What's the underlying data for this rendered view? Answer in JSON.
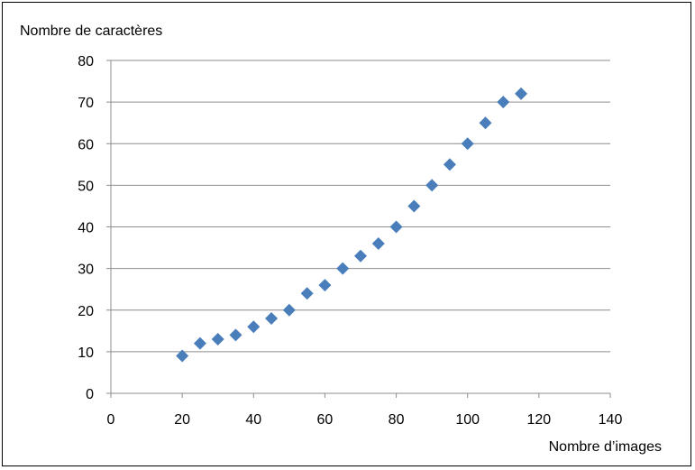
{
  "chart_data": {
    "type": "scatter",
    "title": "",
    "xlabel": "Nombre d’images",
    "ylabel": "Nombre de caractères",
    "xlim": [
      0,
      140
    ],
    "ylim": [
      0,
      80
    ],
    "x_ticks": [
      0,
      20,
      40,
      60,
      80,
      100,
      120,
      140
    ],
    "y_ticks": [
      0,
      10,
      20,
      30,
      40,
      50,
      60,
      70,
      80
    ],
    "grid": "horizontal",
    "legend": "none",
    "marker": "diamond",
    "color": "#4a7ebb",
    "series": [
      {
        "points": [
          [
            20,
            9
          ],
          [
            25,
            12
          ],
          [
            30,
            13
          ],
          [
            35,
            14
          ],
          [
            40,
            16
          ],
          [
            45,
            18
          ],
          [
            50,
            20
          ],
          [
            55,
            24
          ],
          [
            60,
            26
          ],
          [
            65,
            30
          ],
          [
            70,
            33
          ],
          [
            75,
            36
          ],
          [
            80,
            40
          ],
          [
            85,
            45
          ],
          [
            90,
            50
          ],
          [
            95,
            55
          ],
          [
            100,
            60
          ],
          [
            105,
            65
          ],
          [
            110,
            70
          ],
          [
            115,
            72
          ]
        ]
      }
    ]
  }
}
